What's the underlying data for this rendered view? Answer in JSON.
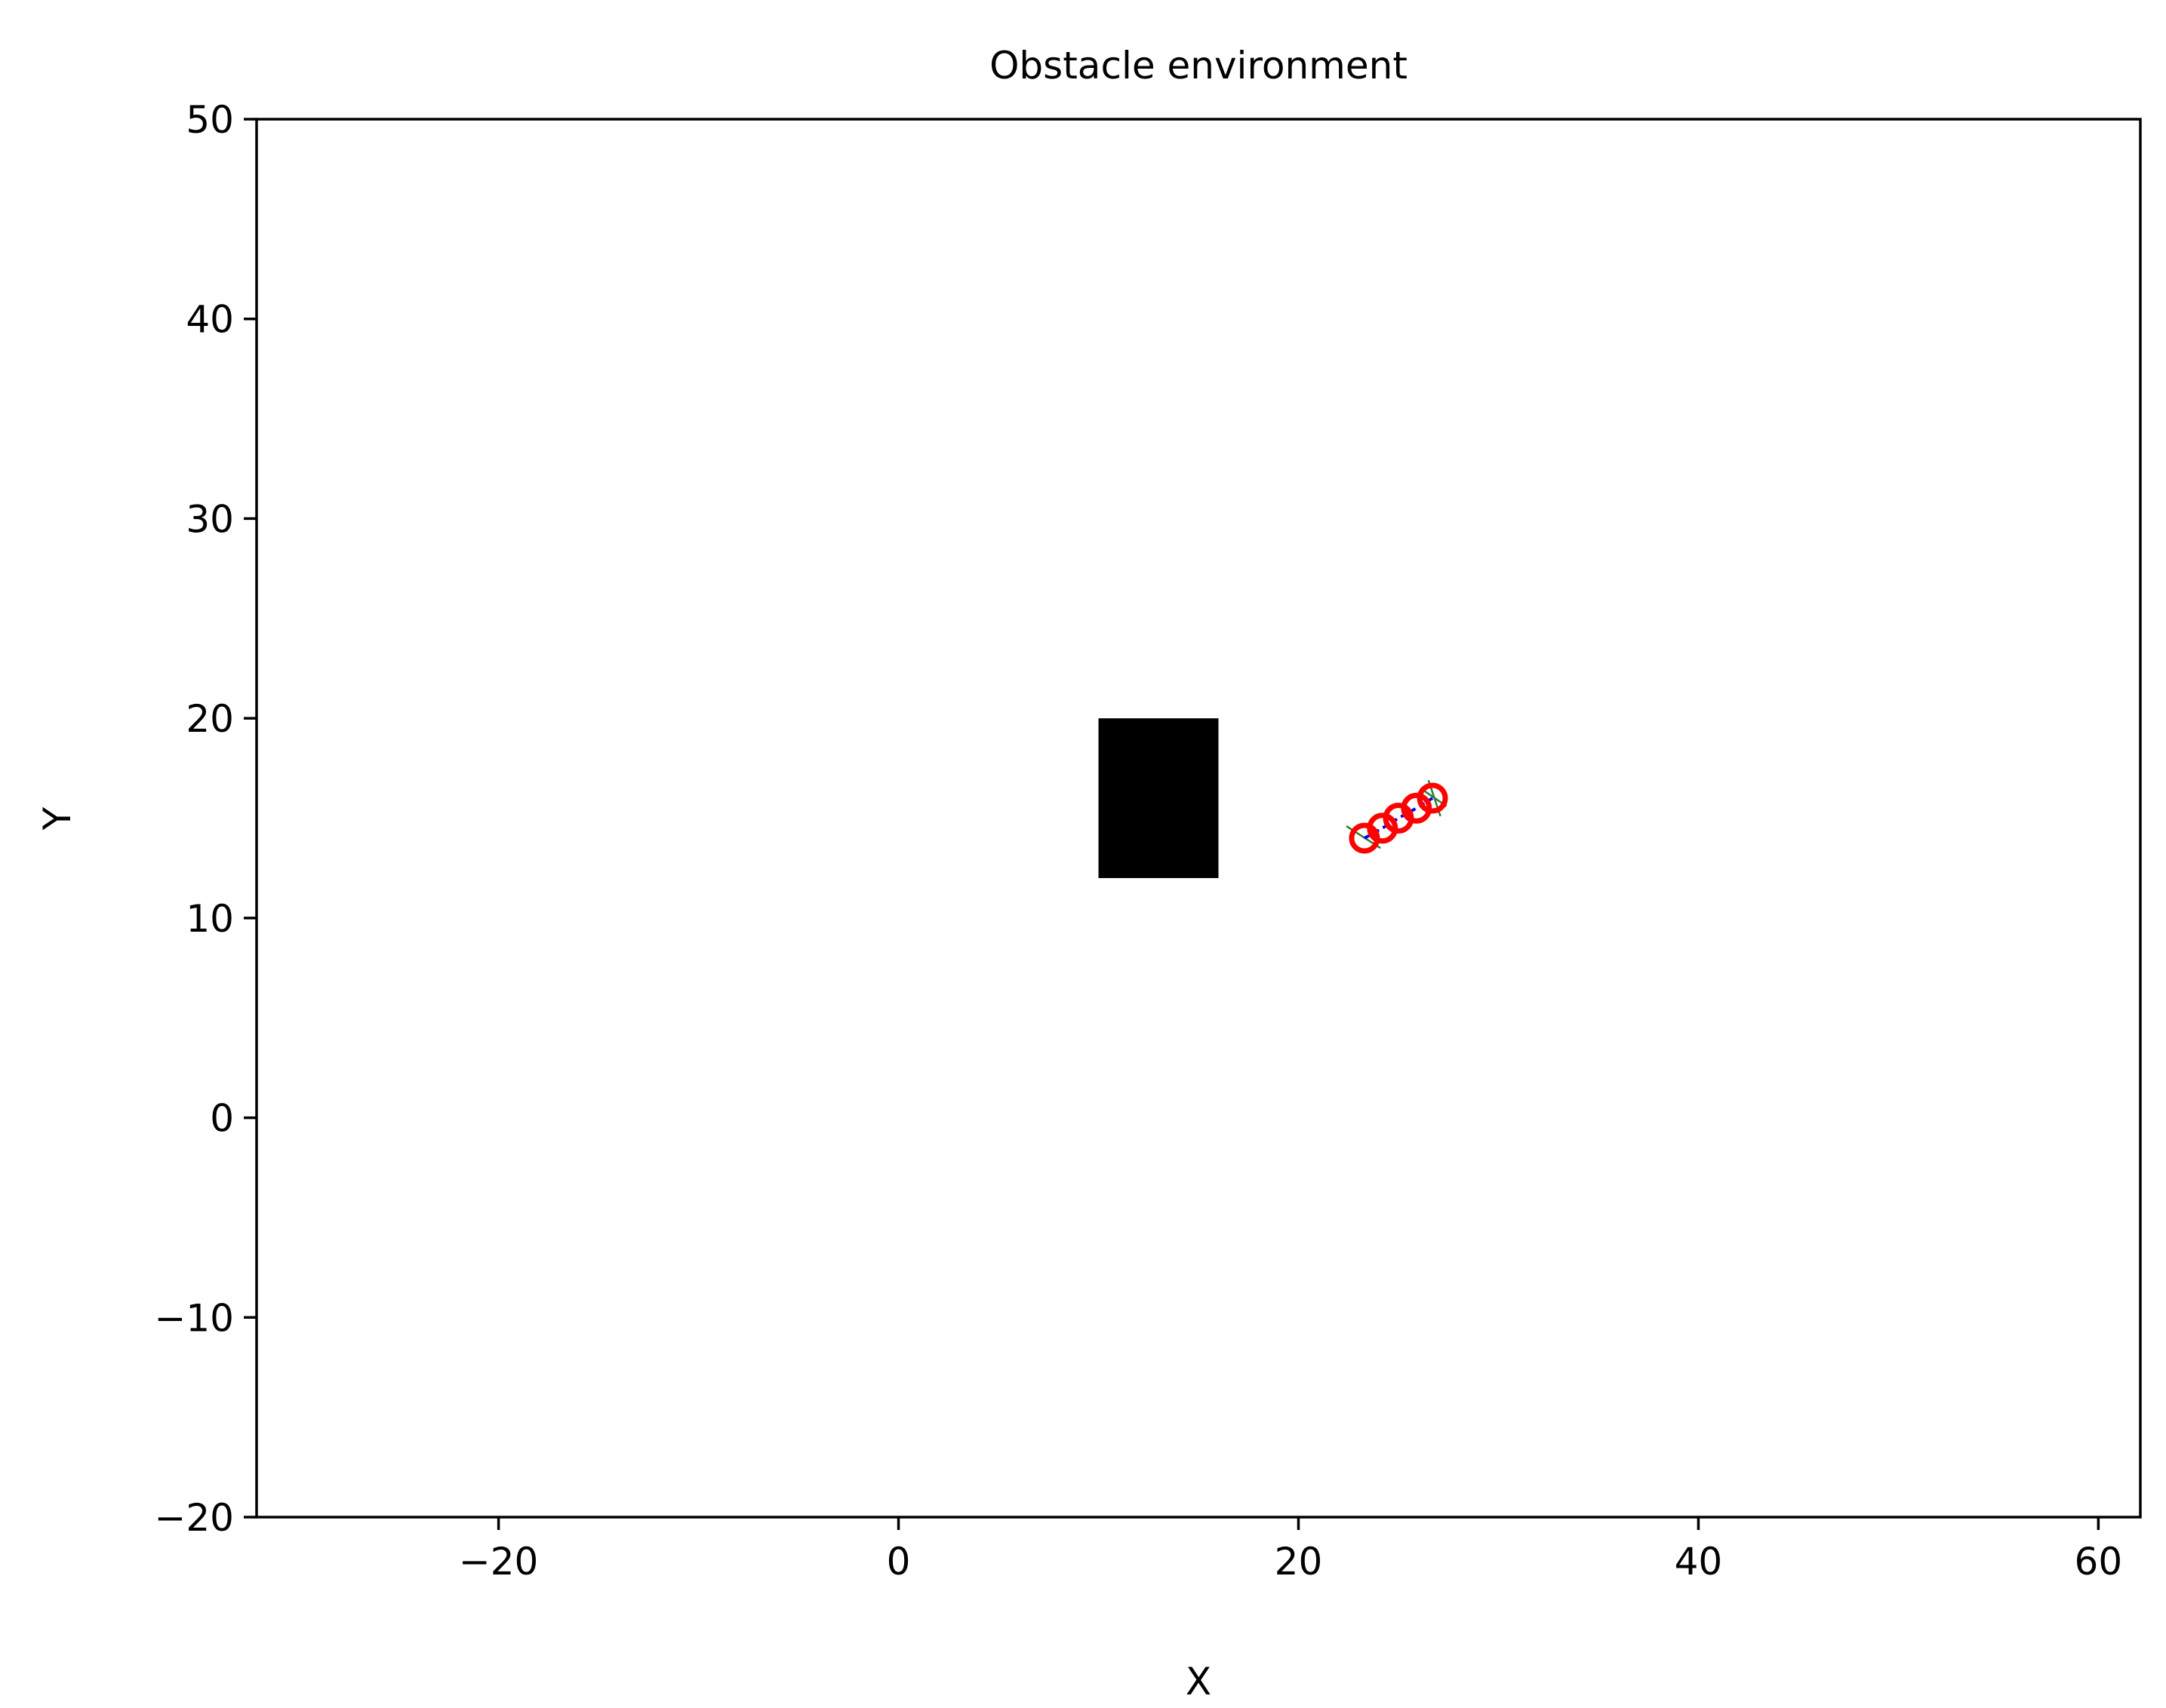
{
  "chart_data": {
    "type": "scatter",
    "title": "Obstacle environment",
    "xlabel": "X",
    "ylabel": "Y",
    "xlim": [
      -32.1,
      62.1
    ],
    "ylim": [
      -20,
      50
    ],
    "xticks": [
      -20,
      0,
      20,
      40,
      60
    ],
    "yticks": [
      -20,
      -10,
      0,
      10,
      20,
      30,
      40,
      50
    ],
    "xtick_labels": [
      "−20",
      "0",
      "20",
      "40",
      "60"
    ],
    "ytick_labels": [
      "−20",
      "−10",
      "0",
      "10",
      "20",
      "30",
      "40",
      "50"
    ],
    "grid": false,
    "legend": "none",
    "obstacles": [
      {
        "x": [
          10,
          16
        ],
        "y": [
          12,
          20
        ],
        "color": "#000000"
      }
    ],
    "path_line": {
      "color": "#0000ff",
      "x": [
        23.3,
        24.2,
        25.0,
        25.9,
        26.7
      ],
      "y": [
        14.0,
        14.5,
        15.0,
        15.5,
        16.0
      ]
    },
    "heading_segments": {
      "color": "#2e7d32",
      "segments": [
        {
          "x": [
            22.4,
            24.1
          ],
          "y": [
            14.6,
            13.5
          ]
        },
        {
          "x": [
            26.1,
            27.4
          ],
          "y": [
            16.5,
            15.6
          ]
        },
        {
          "x": [
            26.5,
            27.1
          ],
          "y": [
            16.9,
            15.1
          ]
        }
      ]
    },
    "markers": {
      "shape": "circle",
      "edge_color": "#ff0000",
      "face": "none",
      "x": [
        23.3,
        24.2,
        25.0,
        25.9,
        26.7
      ],
      "y": [
        14.0,
        14.5,
        15.0,
        15.5,
        16.0
      ]
    }
  }
}
